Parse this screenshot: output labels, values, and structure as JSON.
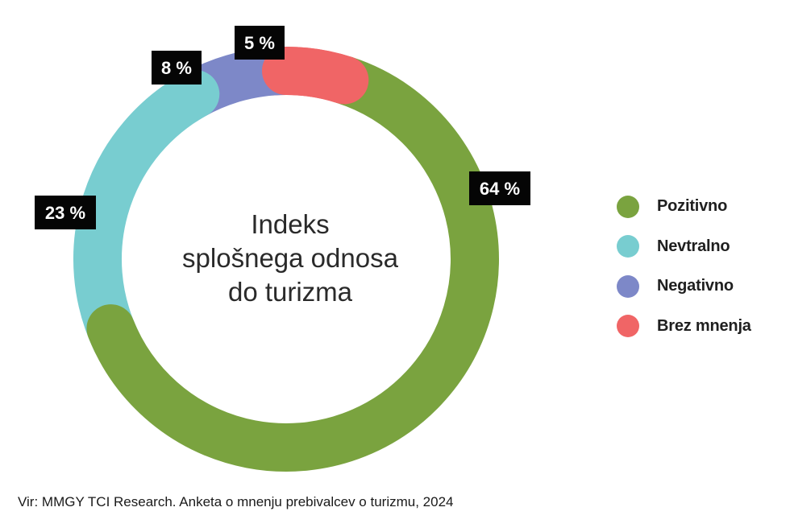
{
  "chart_data": {
    "type": "pie",
    "title_lines": [
      "Indeks",
      "splošnega odnosa",
      "do turizma"
    ],
    "slices": [
      {
        "name": "Pozitivno",
        "value": 64,
        "label": "64 %",
        "color": "#7aa33f"
      },
      {
        "name": "Nevtralno",
        "value": 23,
        "label": "23 %",
        "color": "#78cdd0"
      },
      {
        "name": "Negativno",
        "value": 8,
        "label": "8 %",
        "color": "#7d88c8"
      },
      {
        "name": "Brez mnenja",
        "value": 5,
        "label": "5 %",
        "color": "#f06566"
      }
    ],
    "legend_position": "right"
  },
  "source": "Vir: MMGY TCI Research. Anketa o mnenju prebivalcev o turizmu, 2024"
}
